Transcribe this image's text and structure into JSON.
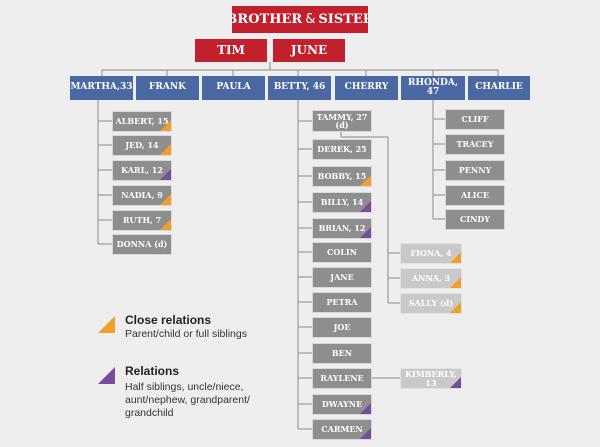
{
  "title": {
    "text_a": "BROTHER",
    "amp": "&",
    "text_b": "SISTER"
  },
  "parents": [
    "TIM",
    "JUNE"
  ],
  "children": [
    {
      "label": "MARTHA,33"
    },
    {
      "label": "FRANK"
    },
    {
      "label": "PAULA"
    },
    {
      "label": "BETTY, 46"
    },
    {
      "label": "CHERRY"
    },
    {
      "label": "RHONDA, 47"
    },
    {
      "label": "CHARLIE"
    }
  ],
  "martha_kids": [
    {
      "label": "ALBERT, 15",
      "relation": "close"
    },
    {
      "label": "JED, 14",
      "relation": "close"
    },
    {
      "label": "KARL, 12",
      "relation": "relation"
    },
    {
      "label": "NADIA, 9",
      "relation": "close"
    },
    {
      "label": "RUTH, 7",
      "relation": "close"
    },
    {
      "label": "DONNA (d)",
      "relation": "none"
    }
  ],
  "betty_kids": [
    {
      "label": "TAMMY, 27",
      "sub": "(d)",
      "relation": "none"
    },
    {
      "label": "DEREK, 25",
      "relation": "none"
    },
    {
      "label": "BOBBY, 15",
      "relation": "close"
    },
    {
      "label": "BILLY, 14",
      "relation": "relation"
    },
    {
      "label": "BRIAN, 12",
      "relation": "relation"
    },
    {
      "label": "COLIN",
      "relation": "none"
    },
    {
      "label": "JANE",
      "relation": "none"
    },
    {
      "label": "PETRA",
      "relation": "none"
    },
    {
      "label": "JOE",
      "relation": "none"
    },
    {
      "label": "BEN",
      "relation": "none"
    },
    {
      "label": "RAYLENE",
      "relation": "none"
    },
    {
      "label": "DWAYNE",
      "relation": "relation"
    },
    {
      "label": "CARMEN",
      "relation": "relation"
    }
  ],
  "tammy_kids": [
    {
      "label": "FIONA, 4",
      "relation": "close"
    },
    {
      "label": "ANNA, 3",
      "relation": "close"
    },
    {
      "label": "SALLY (d)",
      "relation": "close"
    }
  ],
  "raylene_kid": {
    "label": "KIMBERLY, 13",
    "relation": "relation"
  },
  "rhonda_kids": [
    {
      "label": "CLIFF"
    },
    {
      "label": "TRACEY"
    },
    {
      "label": "PENNY"
    },
    {
      "label": "ALICE"
    },
    {
      "label": "CINDY"
    }
  ],
  "legend": {
    "close_title": "Close relations",
    "close_desc": "Parent/child or full siblings",
    "relations_title": "Relations",
    "relations_desc": [
      "Half siblings, uncle/niece,",
      "aunt/nephew, grandparent/",
      "grandchild"
    ]
  },
  "colors": {
    "title_red": "#c3202e",
    "child_blue": "#4a69a2",
    "grandchild_gray": "#8e8e8e",
    "great_grandchild_gray": "#c9c9c9",
    "close_orange": "#f0a028",
    "relation_purple": "#7a4c9c"
  }
}
